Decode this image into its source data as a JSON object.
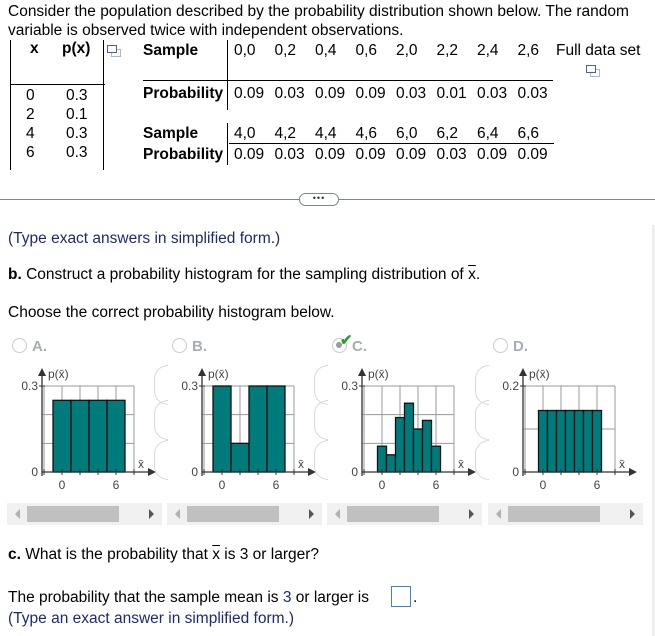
{
  "intro": {
    "line1": "Consider the population described by the probability distribution shown below. The random",
    "line2": "variable is observed twice with independent observations."
  },
  "population_table": {
    "headers": [
      "x",
      "p(x)"
    ],
    "rows": [
      {
        "x": "0",
        "p": "0.3"
      },
      {
        "x": "2",
        "p": "0.1"
      },
      {
        "x": "4",
        "p": "0.3"
      },
      {
        "x": "6",
        "p": "0.3"
      }
    ],
    "copy_icon": "copy-icon"
  },
  "sample_tables": [
    {
      "sample_label": "Sample",
      "prob_label": "Probability",
      "samples": [
        "0,0",
        "0,2",
        "0,4",
        "0,6",
        "2,0",
        "2,2",
        "2,4",
        "2,6"
      ],
      "probs": [
        "0.09",
        "0.03",
        "0.09",
        "0.09",
        "0.03",
        "0.01",
        "0.03",
        "0.03"
      ]
    },
    {
      "sample_label": "Sample",
      "prob_label": "Probability",
      "samples": [
        "4,0",
        "4,2",
        "4,4",
        "4,6",
        "6,0",
        "6,2",
        "6,4",
        "6,6"
      ],
      "probs": [
        "0.09",
        "0.03",
        "0.09",
        "0.09",
        "0.09",
        "0.03",
        "0.09",
        "0.09"
      ]
    }
  ],
  "full_data_set": {
    "label": "Full data set",
    "icon": "copy-icon"
  },
  "ellipsis_label": "•••",
  "instructions_a": "(Type exact answers in simplified form.)",
  "part_b": {
    "prefix": "b.",
    "text": " Construct a probability histogram for the sampling distribution of ",
    "var": "x",
    "suffix": ".",
    "choose": "Choose the correct probability histogram below."
  },
  "options": [
    {
      "letter": "A.",
      "selected": false,
      "correct": false
    },
    {
      "letter": "B.",
      "selected": false,
      "correct": false
    },
    {
      "letter": "C.",
      "selected": true,
      "correct": true,
      "check_icon": "✔"
    },
    {
      "letter": "D.",
      "selected": false,
      "correct": false
    }
  ],
  "chart_data": [
    {
      "type": "bar",
      "title": "A.",
      "ylabel": "p(x̄)",
      "xlabel": "x̄",
      "ylim": [
        0,
        0.3
      ],
      "ytick_labels": [
        "0",
        "0.3"
      ],
      "xtick_labels": [
        "0",
        "6"
      ],
      "x": [
        0,
        2,
        4,
        6
      ],
      "bin_width": 2,
      "values": [
        0.25,
        0.25,
        0.25,
        0.25
      ],
      "grid": true
    },
    {
      "type": "bar",
      "title": "B.",
      "ylabel": "p(x̄)",
      "xlabel": "x̄",
      "ylim": [
        0,
        0.3
      ],
      "ytick_labels": [
        "0",
        "0.3"
      ],
      "xtick_labels": [
        "0",
        "6"
      ],
      "x": [
        0,
        2,
        4,
        6
      ],
      "bin_width": 2,
      "values": [
        0.3,
        0.1,
        0.3,
        0.3
      ],
      "grid": true
    },
    {
      "type": "bar",
      "title": "C.",
      "ylabel": "p(x̄)",
      "xlabel": "x̄",
      "ylim": [
        0,
        0.3
      ],
      "ytick_labels": [
        "0",
        "0.3"
      ],
      "xtick_labels": [
        "0",
        "6"
      ],
      "x": [
        0,
        1,
        2,
        3,
        4,
        5,
        6
      ],
      "bin_width": 1,
      "values": [
        0.09,
        0.06,
        0.19,
        0.24,
        0.15,
        0.18,
        0.09
      ],
      "grid": true
    },
    {
      "type": "bar",
      "title": "D.",
      "ylabel": "p(x̄)",
      "xlabel": "x̄",
      "ylim": [
        0,
        0.2
      ],
      "ytick_labels": [
        "0",
        "0.2"
      ],
      "xtick_labels": [
        "0",
        "6"
      ],
      "x": [
        0,
        1,
        2,
        3,
        4,
        5,
        6
      ],
      "bin_width": 1,
      "values": [
        0.143,
        0.143,
        0.143,
        0.143,
        0.143,
        0.143,
        0.143
      ],
      "grid": true
    }
  ],
  "bar_color": "#007b7b",
  "part_c": {
    "prefix": "c.",
    "text_before": " What is the probability that ",
    "var": "x",
    "text_after": " is 3 or larger?",
    "answer_prefix": "The probability that the sample mean is ",
    "answer_num": "3",
    "answer_suffix": " or larger is",
    "answer_value": "",
    "period": ".",
    "hint": "(Type an exact answer in simplified form.)"
  }
}
